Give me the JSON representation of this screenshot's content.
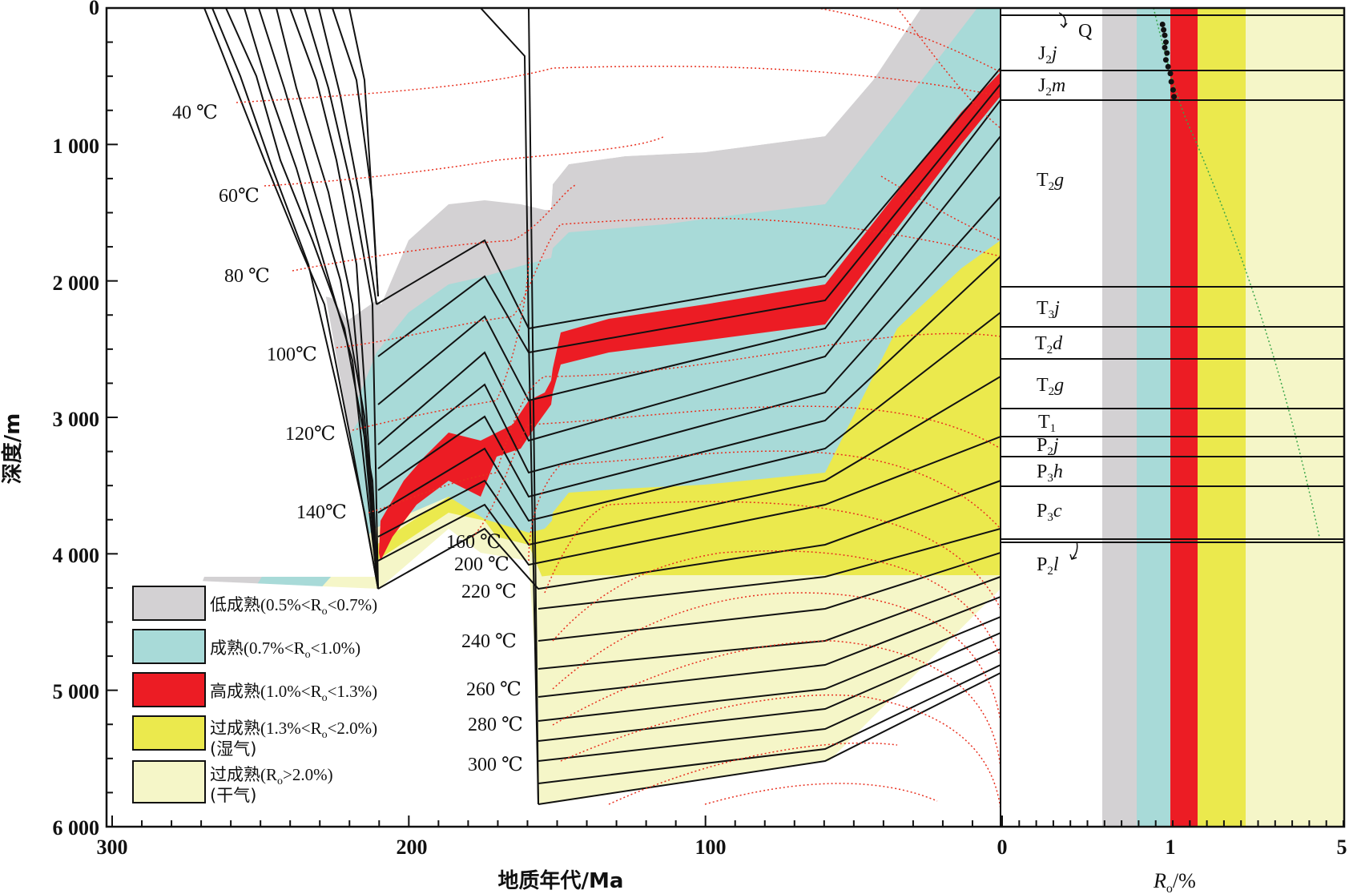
{
  "axes": {
    "y_title": "深度/m",
    "x1_title": "地质年代/Ma",
    "x2_title": "R",
    "x2_title_sub": "o",
    "x2_title_unit": "/%",
    "y_ticks": [
      "0",
      "1 000",
      "2 000",
      "3 000",
      "4 000",
      "5 000",
      "6 000"
    ],
    "x1_ticks": [
      "300",
      "200",
      "100",
      "0"
    ],
    "x2_ticks": [
      "0",
      "1",
      "5"
    ]
  },
  "isotherm_labels": [
    "40 ℃",
    "60℃",
    "80 ℃",
    "100℃",
    "120℃",
    "140℃",
    "160 ℃",
    "200 ℃",
    "220 ℃",
    "240 ℃",
    "260 ℃",
    "280 ℃",
    "300 ℃"
  ],
  "strata": [
    {
      "main": "Q",
      "sub": "",
      "italic": ""
    },
    {
      "main": "J",
      "sub": "2",
      "italic": "j"
    },
    {
      "main": "J",
      "sub": "2",
      "italic": "m"
    },
    {
      "main": "T",
      "sub": "2",
      "italic": "g"
    },
    {
      "main": "T",
      "sub": "3",
      "italic": "j"
    },
    {
      "main": "T",
      "sub": "2",
      "italic": "d"
    },
    {
      "main": "T",
      "sub": "2",
      "italic": "g"
    },
    {
      "main": "T",
      "sub": "1",
      "italic": ""
    },
    {
      "main": "P",
      "sub": "2",
      "italic": "j"
    },
    {
      "main": "P",
      "sub": "3",
      "italic": "h"
    },
    {
      "main": "P",
      "sub": "3",
      "italic": "c"
    },
    {
      "main": "P",
      "sub": "2",
      "italic": "l"
    }
  ],
  "legend": [
    {
      "name": "低成熟",
      "range": "(0.5%<R",
      "sub": "o",
      "tail": "<0.7%)",
      "extra": "",
      "color": "#d3d1d3"
    },
    {
      "name": "成熟",
      "range": "(0.7%<R",
      "sub": "o",
      "tail": "<1.0%)",
      "extra": "",
      "color": "#a8dad8"
    },
    {
      "name": "高成熟",
      "range": "(1.0%<R",
      "sub": "o",
      "tail": "<1.3%)",
      "extra": "",
      "color": "#ec1c24"
    },
    {
      "name": "过成熟",
      "range": "(1.3%<R",
      "sub": "o",
      "tail": "<2.0%)",
      "extra": "(湿气)",
      "color": "#ebe94d"
    },
    {
      "name": "过成熟",
      "range": "(R",
      "sub": "o",
      "tail": ">2.0%)",
      "extra": "(干气)",
      "color": "#f5f6c8"
    }
  ],
  "colors": {
    "low_mature": "#d3d1d3",
    "mature": "#a8dad8",
    "high_mature": "#ec1c24",
    "over_mature_wet": "#ebe94d",
    "over_mature_dry": "#f5f6c8",
    "isotherm": "#e8301f",
    "ro_curve": "#3aa64a"
  },
  "chart_data": {
    "type": "burial-history",
    "x_axis": {
      "label": "地质年代/Ma",
      "range": [
        300,
        0
      ]
    },
    "y_axis": {
      "label": "深度/m",
      "range": [
        0,
        6000
      ],
      "reversed": true
    },
    "ro_axis": {
      "label": "Ro/%",
      "ticks": [
        0,
        1,
        5
      ]
    },
    "ro_bands": [
      {
        "name": "低成熟",
        "min": 0.5,
        "max": 0.7
      },
      {
        "name": "成熟",
        "min": 0.7,
        "max": 1.0
      },
      {
        "name": "高成熟",
        "min": 1.0,
        "max": 1.3
      },
      {
        "name": "过成熟(湿气)",
        "min": 1.3,
        "max": 2.0
      },
      {
        "name": "过成熟(干气)",
        "min": 2.0,
        "max": 5.0
      }
    ],
    "measured_ro": [
      {
        "ro": 0.93,
        "depth": 120
      },
      {
        "ro": 0.94,
        "depth": 160
      },
      {
        "ro": 0.95,
        "depth": 200
      },
      {
        "ro": 0.96,
        "depth": 250
      },
      {
        "ro": 0.95,
        "depth": 290
      },
      {
        "ro": 0.97,
        "depth": 330
      },
      {
        "ro": 0.96,
        "depth": 380
      },
      {
        "ro": 0.98,
        "depth": 430
      },
      {
        "ro": 1.0,
        "depth": 480
      },
      {
        "ro": 1.01,
        "depth": 540
      },
      {
        "ro": 1.03,
        "depth": 600
      },
      {
        "ro": 1.04,
        "depth": 650
      }
    ]
  }
}
